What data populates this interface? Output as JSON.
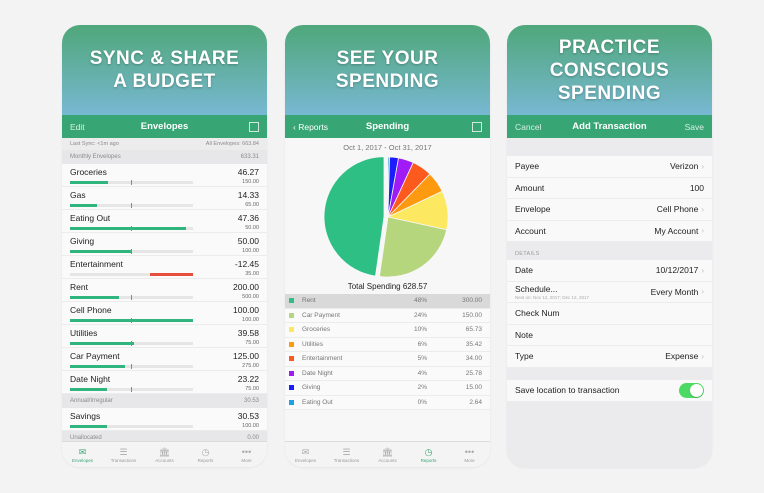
{
  "screens": [
    {
      "banner": "SYNC & SHARE\nA BUDGET",
      "nav": {
        "left": "Edit",
        "title": "Envelopes",
        "right_icon": "compose-icon"
      },
      "meta": {
        "sync": "Last Sync: <1m ago",
        "all": "All Envelopes: 663.84"
      },
      "sections": [
        {
          "title": "Monthly Envelopes",
          "total": "633.31",
          "items": [
            {
              "name": "Groceries",
              "amount": "46.27",
              "budget": "150.00",
              "fill": 31,
              "color": "#2fb57d"
            },
            {
              "name": "Gas",
              "amount": "14.33",
              "budget": "65.00",
              "fill": 22,
              "color": "#2fb57d"
            },
            {
              "name": "Eating Out",
              "amount": "47.36",
              "budget": "50.00",
              "fill": 94,
              "color": "#2fb57d"
            },
            {
              "name": "Giving",
              "amount": "50.00",
              "budget": "100.00",
              "fill": 50,
              "color": "#2fb57d"
            },
            {
              "name": "Entertainment",
              "amount": "-12.45",
              "budget": "35.00",
              "fill": 35,
              "color": "#e74c3c",
              "negative": true
            },
            {
              "name": "Rent",
              "amount": "200.00",
              "budget": "500.00",
              "fill": 40,
              "color": "#2fb57d"
            },
            {
              "name": "Cell Phone",
              "amount": "100.00",
              "budget": "100.00",
              "fill": 100,
              "color": "#2fb57d"
            },
            {
              "name": "Utilities",
              "amount": "39.58",
              "budget": "75.00",
              "fill": 52,
              "color": "#2fb57d"
            },
            {
              "name": "Car Payment",
              "amount": "125.00",
              "budget": "275.00",
              "fill": 45,
              "color": "#2fb57d"
            },
            {
              "name": "Date Night",
              "amount": "23.22",
              "budget": "75.00",
              "fill": 30,
              "color": "#2fb57d"
            }
          ]
        },
        {
          "title": "Annual/Irregular",
          "total": "30.53",
          "items": [
            {
              "name": "Savings",
              "amount": "30.53",
              "budget": "100.00",
              "fill": 30,
              "color": "#2fb57d"
            }
          ]
        },
        {
          "title": "Unallocated",
          "total": "0.00",
          "items": []
        }
      ]
    },
    {
      "banner": "SEE YOUR\nSPENDING",
      "nav": {
        "left": "Reports",
        "title": "Spending",
        "right_icon": "calendar-icon"
      },
      "date_range": "Oct 1, 2017 - Oct 31, 2017",
      "total": "Total Spending 628.57"
    },
    {
      "banner": "PRACTICE\nCONSCIOUS\nSPENDING",
      "nav": {
        "left": "Cancel",
        "title": "Add Transaction",
        "right": "Save"
      },
      "fields": [
        {
          "label": "Payee",
          "value": "Verizon",
          "chevron": true
        },
        {
          "label": "Amount",
          "value": "100",
          "chevron": false
        },
        {
          "label": "Envelope",
          "value": "Cell Phone",
          "chevron": true
        },
        {
          "label": "Account",
          "value": "My Account",
          "chevron": true
        }
      ],
      "details_header": "DETAILS",
      "details": [
        {
          "label": "Date",
          "value": "10/12/2017",
          "chevron": true
        },
        {
          "label": "Schedule...",
          "sub": "Next on: Nov 12, 2017; Dec 12, 2017",
          "value": "Every Month",
          "chevron": true
        },
        {
          "label": "Check Num",
          "value": ""
        },
        {
          "label": "Note",
          "value": ""
        },
        {
          "label": "Type",
          "value": "Expense",
          "chevron": true
        }
      ],
      "toggle": {
        "label": "Save location to transaction",
        "on": true
      }
    }
  ],
  "tabbar": [
    {
      "label": "Envelopes",
      "icon": "envelopes-icon",
      "glyph": "✉"
    },
    {
      "label": "Transactions",
      "icon": "list-icon",
      "glyph": "☰"
    },
    {
      "label": "Accounts",
      "icon": "bank-icon",
      "glyph": "🏛"
    },
    {
      "label": "Reports",
      "icon": "clock-icon",
      "glyph": "◷"
    },
    {
      "label": "More",
      "icon": "more-icon",
      "glyph": "•••"
    }
  ],
  "chart_data": {
    "type": "pie",
    "title": "Total Spending 628.57",
    "categories": [
      "Rent",
      "Car Payment",
      "Groceries",
      "Utilities",
      "Entertainment",
      "Date Night",
      "Giving",
      "Eating Out"
    ],
    "percents": [
      "48%",
      "24%",
      "10%",
      "6%",
      "5%",
      "4%",
      "2%",
      "0%"
    ],
    "values": [
      300.0,
      150.0,
      65.73,
      35.42,
      34.0,
      25.78,
      15.0,
      2.64
    ],
    "amounts": [
      "300.00",
      "150.00",
      "65.73",
      "35.42",
      "34.00",
      "25.78",
      "15.00",
      "2.64"
    ],
    "colors": [
      "#2dbf84",
      "#b6d67e",
      "#fde862",
      "#fd9a10",
      "#fd5a1e",
      "#a01bf5",
      "#1d1dfc",
      "#1da1e6"
    ],
    "selected": "Rent"
  }
}
